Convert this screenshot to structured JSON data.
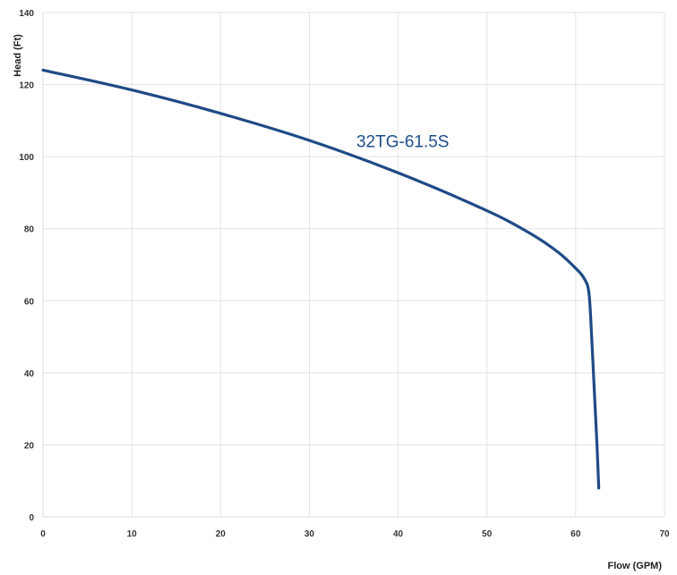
{
  "chart_data": {
    "type": "line",
    "title": "",
    "xlabel": "Flow (GPM)",
    "ylabel": "Head (Ft)",
    "xlim": [
      0,
      70
    ],
    "ylim": [
      0,
      140
    ],
    "x_ticks": [
      "0",
      "10",
      "20",
      "30",
      "40",
      "50",
      "60",
      "70"
    ],
    "y_ticks": [
      "0",
      "20",
      "40",
      "60",
      "80",
      "100",
      "120",
      "140"
    ],
    "grid": true,
    "series": [
      {
        "name": "32TG-61.5S",
        "color": "#1f4a86",
        "x": [
          0,
          10,
          20,
          30,
          40,
          50,
          55,
          58,
          60,
          61,
          61.5,
          61.8,
          62.0,
          62.2,
          62.4,
          62.6
        ],
        "y": [
          124,
          118.5,
          112,
          104.5,
          95.5,
          85,
          78.5,
          73.5,
          69,
          66,
          62,
          50,
          40,
          30,
          20,
          8
        ]
      }
    ]
  }
}
